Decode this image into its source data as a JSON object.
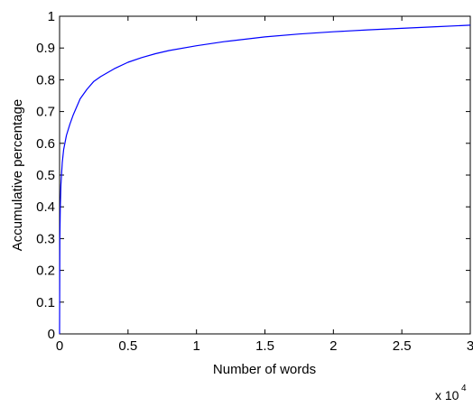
{
  "chart_data": {
    "type": "line",
    "title": "",
    "xlabel": "Number of words",
    "ylabel": "Accumulative percentage",
    "x_multiplier": {
      "base": "x 10",
      "exponent": "4"
    },
    "xlim": [
      0,
      30000
    ],
    "ylim": [
      0,
      1
    ],
    "x_ticks": [
      0,
      5000,
      10000,
      15000,
      20000,
      25000,
      30000
    ],
    "x_tick_labels": [
      "0",
      "0.5",
      "1",
      "1.5",
      "2",
      "2.5",
      "3"
    ],
    "y_ticks": [
      0,
      0.1,
      0.2,
      0.3,
      0.4,
      0.5,
      0.6,
      0.7,
      0.8,
      0.9,
      1
    ],
    "y_tick_labels": [
      "0",
      "0.1",
      "0.2",
      "0.3",
      "0.4",
      "0.5",
      "0.6",
      "0.7",
      "0.8",
      "0.9",
      "1"
    ],
    "grid": false,
    "series": [
      {
        "color": "#0000ff",
        "x": [
          0,
          20,
          50,
          100,
          200,
          300,
          500,
          750,
          1000,
          1500,
          2000,
          2500,
          3000,
          4000,
          5000,
          6000,
          7000,
          8000,
          10000,
          12000,
          15000,
          17500,
          20000,
          22500,
          25000,
          27500,
          30000
        ],
        "y": [
          0,
          0.3,
          0.4,
          0.47,
          0.54,
          0.58,
          0.625,
          0.66,
          0.69,
          0.74,
          0.77,
          0.795,
          0.81,
          0.835,
          0.855,
          0.87,
          0.882,
          0.892,
          0.907,
          0.92,
          0.935,
          0.944,
          0.951,
          0.957,
          0.962,
          0.967,
          0.972
        ]
      }
    ]
  }
}
